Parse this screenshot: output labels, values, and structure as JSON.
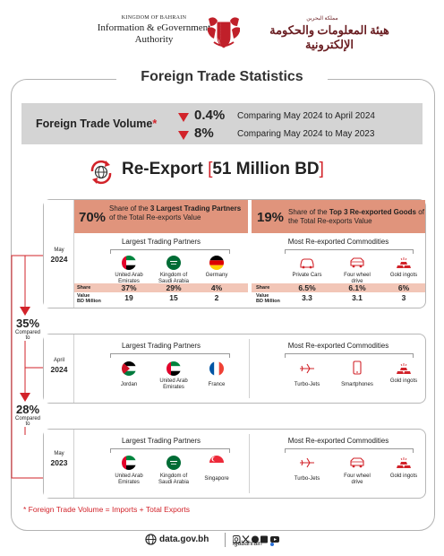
{
  "header": {
    "org_top": "KINGDOM OF BAHRAIN",
    "org_line1": "Information & eGovernment",
    "org_line2": "Authority",
    "ar_top": "مملكة البحرين",
    "ar_name": "هيئة المعلومات والحكومة الإلكترونية"
  },
  "title": "Foreign Trade Statistics",
  "volume": {
    "label": "Foreign Trade Volume",
    "asterisk": "*",
    "rows": [
      {
        "pct": "0.4%",
        "text": "Comparing May 2024 to April 2024"
      },
      {
        "pct": "8%",
        "text": "Comparing May 2024 to May 2023"
      }
    ]
  },
  "reexport": {
    "label": "Re-Export",
    "bracket_open": "[",
    "value": "51 Million BD",
    "bracket_close": "]"
  },
  "share_headers": {
    "partners": {
      "pct": "70%",
      "pre": "Share of the ",
      "bold": "3 Largest Trading Partners",
      "post": " of the Total Re-exports Value"
    },
    "goods": {
      "pct": "19%",
      "pre": "Share of the ",
      "bold": "Top 3 Re-exported Goods",
      "post": " of the Total Re-exports Value"
    }
  },
  "sections": [
    {
      "month": "May",
      "year": "2024",
      "partners_title": "Largest Trading Partners",
      "partners": [
        {
          "name": "United Arab Emirates",
          "flag": "uae"
        },
        {
          "name": "Kingdom of Saudi Arabia",
          "flag": "ksa"
        },
        {
          "name": "Germany",
          "flag": "germany"
        }
      ],
      "goods_title": "Most Re-exported Commodities",
      "goods": [
        {
          "name": "Private Cars",
          "icon": "car-icon"
        },
        {
          "name": "Four wheel drive",
          "icon": "suv-icon"
        },
        {
          "name": "Gold ingots",
          "icon": "gold-icon"
        }
      ],
      "share_label": "Share",
      "value_label_1": "Value",
      "value_label_2": "BD Million",
      "partner_shares": [
        "37%",
        "29%",
        "4%"
      ],
      "partner_values": [
        "19",
        "15",
        "2"
      ],
      "goods_shares": [
        "6.5%",
        "6.1%",
        "6%"
      ],
      "goods_values": [
        "3.3",
        "3.1",
        "3"
      ]
    },
    {
      "month": "April",
      "year": "2024",
      "partners_title": "Largest Trading Partners",
      "partners": [
        {
          "name": "Jordan",
          "flag": "jordan"
        },
        {
          "name": "United Arab Emirates",
          "flag": "uae"
        },
        {
          "name": "France",
          "flag": "france"
        }
      ],
      "goods_title": "Most Re-exported Commodities",
      "goods": [
        {
          "name": "Turbo-Jets",
          "icon": "jet-icon"
        },
        {
          "name": "Smartphones",
          "icon": "phone-icon"
        },
        {
          "name": "Gold ingots",
          "icon": "gold-icon"
        }
      ]
    },
    {
      "month": "May",
      "year": "2023",
      "partners_title": "Largest Trading Partners",
      "partners": [
        {
          "name": "United Arab Emirates",
          "flag": "uae"
        },
        {
          "name": "Kingdom of Saudi Arabia",
          "flag": "ksa"
        },
        {
          "name": "Singapore",
          "flag": "singapore"
        }
      ],
      "goods_title": "Most Re-exported Commodities",
      "goods": [
        {
          "name": "Turbo-Jets",
          "icon": "jet-icon"
        },
        {
          "name": "Four wheel drive",
          "icon": "suv-icon"
        },
        {
          "name": "Gold ingots",
          "icon": "gold-icon"
        }
      ]
    }
  ],
  "comparisons": [
    {
      "pct": "35%",
      "label": "Compared to"
    },
    {
      "pct": "28%",
      "label": "Compared to"
    }
  ],
  "footnote": "*  Foreign Trade Volume = Imports + Total Exports",
  "footer": {
    "url": "data.gov.bh",
    "handle": "igabahrain"
  },
  "colors": {
    "accent_red": "#d2232a",
    "salmon": "#e0947c",
    "pink_row": "#f2c6b7",
    "band_gray": "#d4d4d4"
  }
}
